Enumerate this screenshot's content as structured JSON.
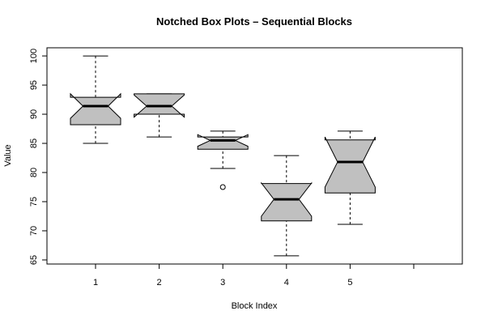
{
  "chart_data": {
    "type": "boxplot",
    "title": "Notched Box Plots – Sequential Blocks",
    "x_label": "Block Index",
    "y_label": "Value",
    "categories": [
      "1",
      "2",
      "3",
      "4",
      "5",
      null
    ],
    "min": [
      85,
      86.1,
      80.7,
      65.7,
      71.1,
      null
    ],
    "q1": [
      88.2,
      90,
      84,
      71.7,
      76.5,
      null
    ],
    "median": [
      91.4,
      91.4,
      85.5,
      75.4,
      81.8,
      null
    ],
    "q3": [
      92.9,
      93.5,
      86.1,
      78.1,
      85.6,
      null
    ],
    "max": [
      100,
      93.5,
      87.1,
      82.9,
      87.1,
      null
    ],
    "notch_low": [
      89.3,
      89.5,
      84.5,
      72.5,
      77.5,
      null
    ],
    "notch_high": [
      93.5,
      93.3,
      86.5,
      78.2,
      86.1,
      null
    ],
    "outliers": [
      {
        "x": 3,
        "value": 77.5
      }
    ],
    "color": "#c0c0c0",
    "ylim": [
      64.3,
      101.4
    ],
    "yticks": [
      65,
      70,
      75,
      80,
      85,
      90,
      95,
      100
    ]
  }
}
